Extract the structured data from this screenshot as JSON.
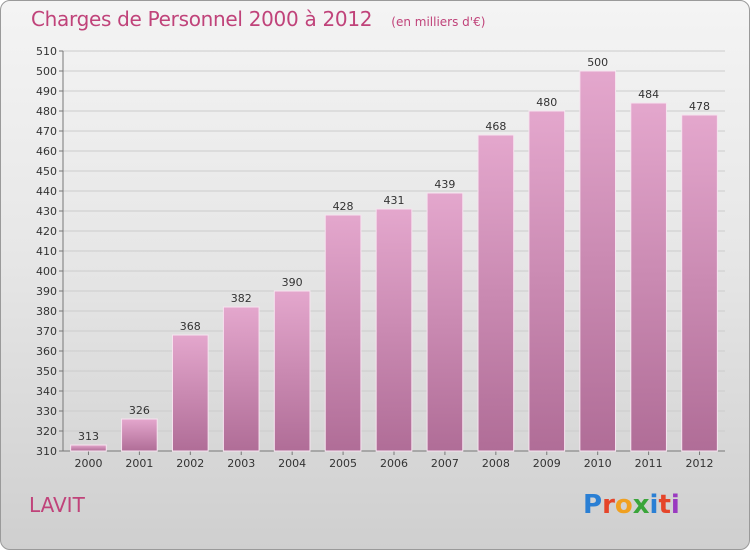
{
  "header": {
    "title": "Charges de Personnel 2000 à 2012",
    "subtitle": "(en milliers d'€)"
  },
  "footer": {
    "commune": "LAVIT",
    "logo_text": "Proxiti",
    "logo_colors": [
      "#2a7fd4",
      "#e5452a",
      "#f0a020",
      "#3aa53a",
      "#2a7fd4",
      "#e5452a",
      "#9a3ac0"
    ]
  },
  "chart_data": {
    "type": "bar",
    "title": "Charges de Personnel 2000 à 2012",
    "subtitle": "(en milliers d'€)",
    "categories": [
      "2000",
      "2001",
      "2002",
      "2003",
      "2004",
      "2005",
      "2006",
      "2007",
      "2008",
      "2009",
      "2010",
      "2011",
      "2012"
    ],
    "values": [
      313,
      326,
      368,
      382,
      390,
      428,
      431,
      439,
      468,
      480,
      500,
      484,
      478
    ],
    "ylim": [
      310,
      510
    ],
    "yticks": [
      310,
      320,
      330,
      340,
      350,
      360,
      370,
      380,
      390,
      400,
      410,
      420,
      430,
      440,
      450,
      460,
      470,
      480,
      490,
      500,
      510
    ],
    "grid": true,
    "bar_color_top": "#e4a7cd",
    "bar_color_bottom": "#b06d97"
  }
}
